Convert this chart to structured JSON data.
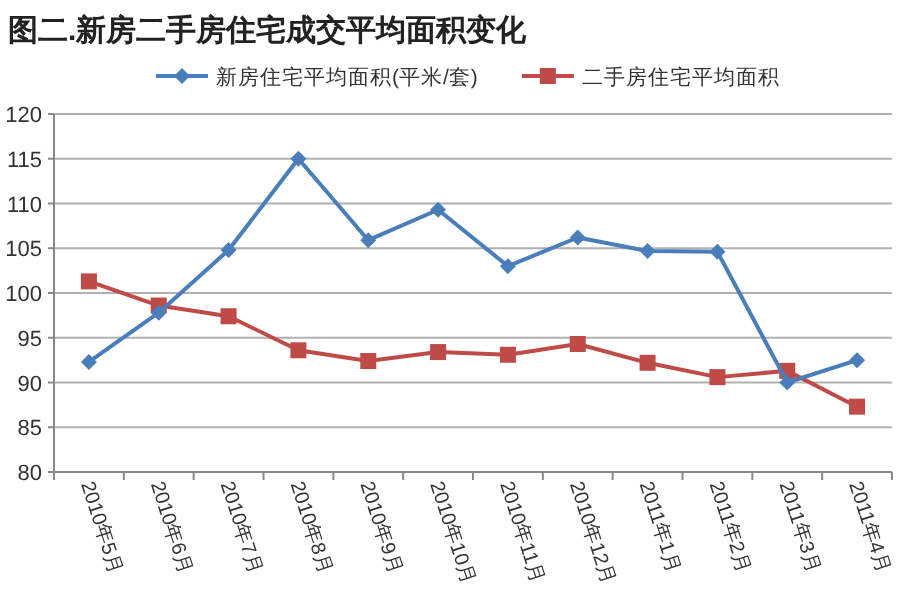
{
  "chart_data": {
    "type": "line",
    "title": "图二.新房二手房住宅成交平均面积变化",
    "categories": [
      "2010年5月",
      "2010年6月",
      "2010年7月",
      "2010年8月",
      "2010年9月",
      "2010年10月",
      "2010年11月",
      "2010年12月",
      "2011年1月",
      "2011年2月",
      "2011年3月",
      "2011年4月"
    ],
    "series": [
      {
        "name": "新房住宅平均面积(平米/套)",
        "color": "#4a7ebb",
        "marker": "diamond",
        "values": [
          92.3,
          97.8,
          104.8,
          115,
          105.9,
          109.3,
          103,
          106.2,
          104.7,
          104.6,
          90.0,
          92.5
        ]
      },
      {
        "name": "二手房住宅平均面积",
        "color": "#be4b48",
        "marker": "square",
        "values": [
          101.3,
          98.6,
          97.4,
          93.6,
          92.4,
          93.4,
          93.1,
          94.3,
          92.2,
          90.6,
          91.3,
          87.3
        ]
      }
    ],
    "ylim": [
      80,
      120
    ],
    "yticks": [
      80,
      85,
      90,
      95,
      100,
      105,
      110,
      115,
      120
    ],
    "grid": "y",
    "legend": "top"
  }
}
